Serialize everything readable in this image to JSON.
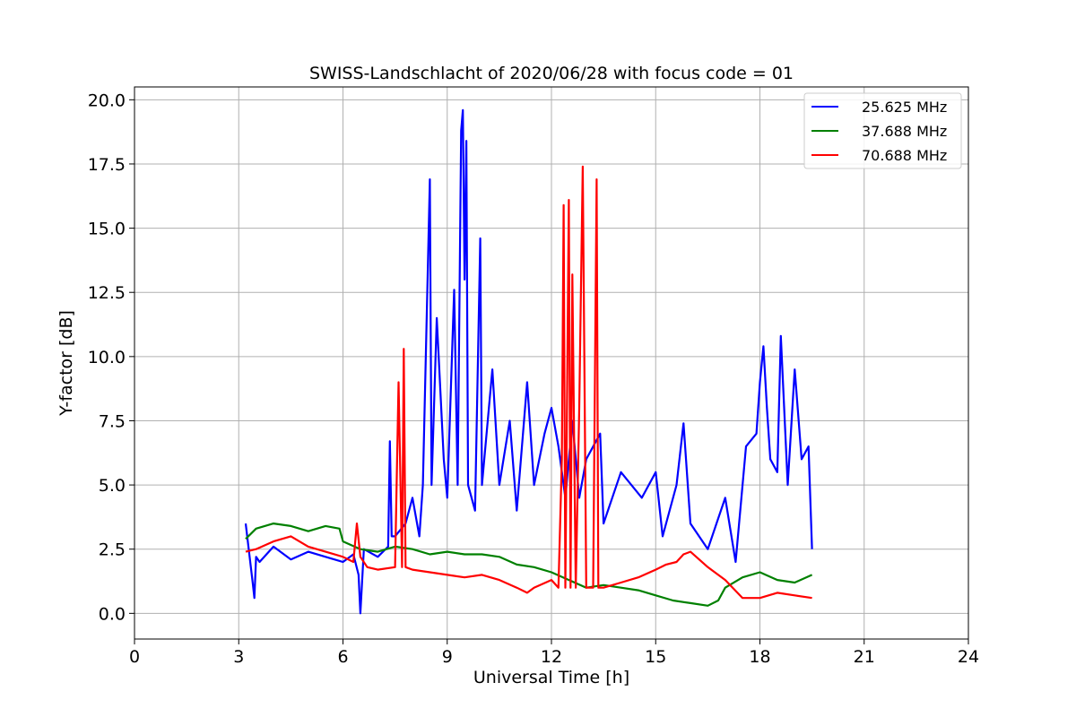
{
  "chart_data": {
    "type": "line",
    "title": "SWISS-Landschlacht of 2020/06/28 with focus code = 01",
    "xlabel": "Universal Time [h]",
    "ylabel": "Y-factor [dB]",
    "xlim": [
      0,
      24
    ],
    "ylim": [
      -1.0,
      20.5
    ],
    "xticks": [
      0,
      3,
      6,
      9,
      12,
      15,
      18,
      21,
      24
    ],
    "xtick_labels": [
      "0",
      "3",
      "6",
      "9",
      "12",
      "15",
      "18",
      "21",
      "24"
    ],
    "yticks": [
      0.0,
      2.5,
      5.0,
      7.5,
      10.0,
      12.5,
      15.0,
      17.5,
      20.0
    ],
    "ytick_labels": [
      "0.0",
      "2.5",
      "5.0",
      "7.5",
      "10.0",
      "12.5",
      "15.0",
      "17.5",
      "20.0"
    ],
    "grid": true,
    "legend_position": "top-right",
    "series": [
      {
        "name": "25.625 MHz",
        "color": "#0000ff",
        "x": [
          3.2,
          3.4,
          3.45,
          3.5,
          3.6,
          4.0,
          4.5,
          5.0,
          5.5,
          6.0,
          6.3,
          6.45,
          6.5,
          6.6,
          7.0,
          7.3,
          7.35,
          7.4,
          7.5,
          7.8,
          8.0,
          8.2,
          8.3,
          8.5,
          8.55,
          8.7,
          8.9,
          9.0,
          9.2,
          9.3,
          9.4,
          9.45,
          9.5,
          9.55,
          9.6,
          9.8,
          9.95,
          10.0,
          10.3,
          10.5,
          10.8,
          11.0,
          11.3,
          11.5,
          11.8,
          12.0,
          12.2,
          12.4,
          12.6,
          12.8,
          13.0,
          13.4,
          13.5,
          14.0,
          14.3,
          14.6,
          15.0,
          15.2,
          15.6,
          15.8,
          16.0,
          16.5,
          17.0,
          17.3,
          17.6,
          17.9,
          18.0,
          18.1,
          18.2,
          18.3,
          18.5,
          18.6,
          18.8,
          19.0,
          19.2,
          19.4,
          19.5
        ],
        "y": [
          3.5,
          1.2,
          0.6,
          2.2,
          2.0,
          2.6,
          2.1,
          2.4,
          2.2,
          2.0,
          2.3,
          1.5,
          0.0,
          2.5,
          2.2,
          2.6,
          6.7,
          3.0,
          3.0,
          3.5,
          4.5,
          3.0,
          5.0,
          16.9,
          5.0,
          11.5,
          6.0,
          4.5,
          12.6,
          5.0,
          18.8,
          19.6,
          13.0,
          18.4,
          5.0,
          4.0,
          14.6,
          5.0,
          9.5,
          5.0,
          7.5,
          4.0,
          9.0,
          5.0,
          7.0,
          8.0,
          6.5,
          4.5,
          7.5,
          4.5,
          6.0,
          7.0,
          3.5,
          5.5,
          5.0,
          4.5,
          5.5,
          3.0,
          5.0,
          7.4,
          3.5,
          2.5,
          4.5,
          2.0,
          6.5,
          7.0,
          9.0,
          10.4,
          8.0,
          6.0,
          5.5,
          10.8,
          5.0,
          9.5,
          6.0,
          6.5,
          2.5
        ]
      },
      {
        "name": "37.688 MHz",
        "color": "#008000",
        "x": [
          3.2,
          3.5,
          4.0,
          4.5,
          5.0,
          5.5,
          5.9,
          6.0,
          6.5,
          7.0,
          7.5,
          8.0,
          8.5,
          9.0,
          9.5,
          10.0,
          10.5,
          11.0,
          11.5,
          12.0,
          12.5,
          13.0,
          13.5,
          14.0,
          14.5,
          15.0,
          15.5,
          16.0,
          16.5,
          16.8,
          17.0,
          17.5,
          18.0,
          18.5,
          19.0,
          19.5
        ],
        "y": [
          2.9,
          3.3,
          3.5,
          3.4,
          3.2,
          3.4,
          3.3,
          2.8,
          2.5,
          2.4,
          2.6,
          2.5,
          2.3,
          2.4,
          2.3,
          2.3,
          2.2,
          1.9,
          1.8,
          1.6,
          1.3,
          1.0,
          1.1,
          1.0,
          0.9,
          0.7,
          0.5,
          0.4,
          0.3,
          0.5,
          1.0,
          1.4,
          1.6,
          1.3,
          1.2,
          1.5
        ]
      },
      {
        "name": "70.688 MHz",
        "color": "#ff0000",
        "x": [
          3.2,
          3.5,
          4.0,
          4.5,
          5.0,
          5.5,
          6.0,
          6.3,
          6.4,
          6.5,
          6.7,
          7.0,
          7.5,
          7.6,
          7.7,
          7.75,
          7.8,
          8.0,
          8.5,
          9.0,
          9.5,
          10.0,
          10.5,
          11.0,
          11.3,
          11.5,
          12.0,
          12.2,
          12.3,
          12.35,
          12.4,
          12.5,
          12.55,
          12.6,
          12.7,
          12.8,
          12.9,
          13.0,
          13.2,
          13.3,
          13.35,
          13.5,
          14.0,
          14.5,
          15.0,
          15.3,
          15.6,
          15.8,
          16.0,
          16.5,
          17.0,
          17.5,
          18.0,
          18.5,
          19.0,
          19.5
        ],
        "y": [
          2.4,
          2.5,
          2.8,
          3.0,
          2.6,
          2.4,
          2.2,
          2.0,
          3.5,
          2.2,
          1.8,
          1.7,
          1.8,
          9.0,
          1.8,
          10.3,
          1.8,
          1.7,
          1.6,
          1.5,
          1.4,
          1.5,
          1.3,
          1.0,
          0.8,
          1.0,
          1.3,
          1.0,
          6.0,
          15.9,
          1.0,
          16.1,
          1.0,
          13.2,
          1.0,
          8.0,
          17.4,
          1.0,
          1.0,
          16.9,
          1.0,
          1.0,
          1.2,
          1.4,
          1.7,
          1.9,
          2.0,
          2.3,
          2.4,
          1.8,
          1.3,
          0.6,
          0.6,
          0.8,
          0.7,
          0.6
        ]
      }
    ]
  }
}
